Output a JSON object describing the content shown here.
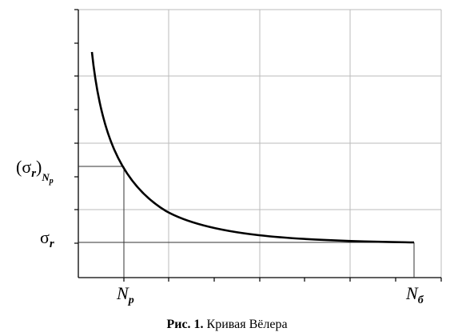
{
  "figure": {
    "y_label_upper": {
      "open": "(σ",
      "sub": "r",
      "close": ")",
      "outer_sub": "N",
      "outer_subsub": "p"
    },
    "y_label_lower": {
      "main": "σ",
      "sub": "r"
    },
    "x_label_left": {
      "main": "N",
      "sub": "p"
    },
    "x_label_right": {
      "main": "N",
      "sub": "б"
    },
    "caption": {
      "number": "Рис. 1.",
      "text": "Кривая Вёлера"
    }
  }
}
